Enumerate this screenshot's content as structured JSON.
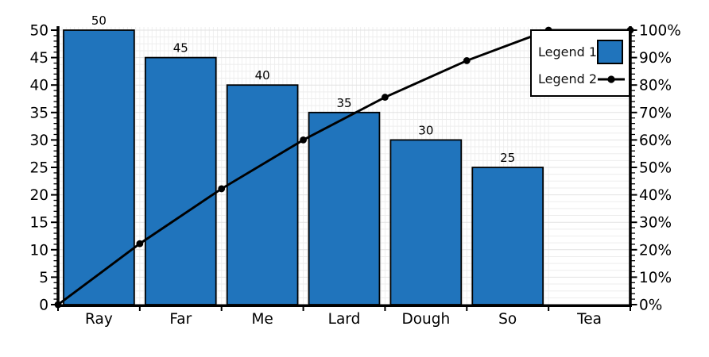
{
  "chart_data": {
    "type": "pareto (bar + cumulative line)",
    "title": "",
    "categories": [
      "Ray",
      "Far",
      "Me",
      "Lard",
      "Dough",
      "So",
      "Tea"
    ],
    "series": [
      {
        "name": "Legend 1",
        "type": "bar",
        "axis": "left",
        "values": [
          50,
          45,
          40,
          35,
          30,
          25,
          0
        ],
        "value_labels": [
          "50",
          "45",
          "40",
          "35",
          "30",
          "25",
          ""
        ]
      },
      {
        "name": "Legend 2",
        "type": "line",
        "axis": "right",
        "x_note": "points at category boundaries, starting at origin",
        "cumulative_pct": [
          0,
          22.22,
          42.22,
          60,
          75.56,
          88.89,
          100,
          100
        ]
      }
    ],
    "left_axis": {
      "range": [
        0,
        50
      ],
      "major_ticks": [
        0,
        5,
        10,
        15,
        20,
        25,
        30,
        35,
        40,
        45,
        50
      ],
      "minor_step": 1
    },
    "right_axis": {
      "range": [
        0,
        100
      ],
      "major_ticks": [
        0,
        10,
        20,
        30,
        40,
        50,
        60,
        70,
        80,
        90,
        100
      ],
      "major_tick_labels": [
        "0%",
        "10%",
        "20%",
        "30%",
        "40%",
        "50%",
        "60%",
        "70%",
        "80%",
        "90%",
        "100%"
      ],
      "minor_step": 2
    },
    "x_axis": {
      "tick_positions": "category boundaries",
      "labels": [
        "Ray",
        "Far",
        "Me",
        "Lard",
        "Dough",
        "So",
        "Tea"
      ]
    },
    "grid": {
      "horizontal_minor_pct_step": 2.5,
      "vertical_minor_per_category": 20,
      "on": true
    },
    "colors": {
      "bar_fill": "#2074BC",
      "bar_stroke": "#000000",
      "line": "#000000",
      "axis": "#000000",
      "text": "#000000",
      "grid_major": "#e2e2e2",
      "grid_minor": "#ededed",
      "grid_vertical": "#efefef",
      "background": "#ffffff"
    },
    "legend": {
      "position": "top-right",
      "items": [
        {
          "label": "Legend 1",
          "marker": "bar-swatch"
        },
        {
          "label": "Legend 2",
          "marker": "line-dot"
        }
      ]
    }
  }
}
